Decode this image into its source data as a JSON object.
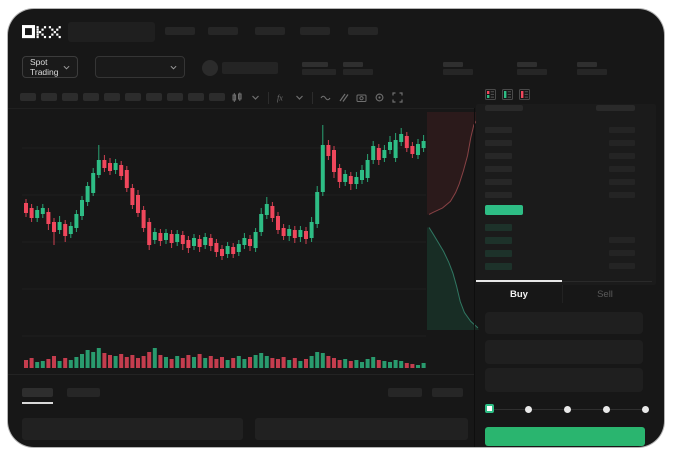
{
  "brand": {
    "name": "OKX"
  },
  "colors": {
    "green": "#2ebd85",
    "red": "#f0475c",
    "buy_button_green": "#2ab56f",
    "frame_bg": "#171717",
    "panel_bg": "#1b1b1b",
    "placeholder": "#262626",
    "active_underline": "#e8e8e8"
  },
  "header": {
    "nav_placeholder_count": 5
  },
  "subheader": {
    "market_selector_label": "Spot Trading",
    "stat_groups": 5
  },
  "toolbar": {
    "timeframe_button_count": 10,
    "icons": [
      "candle-style-icon",
      "chevron-down-icon",
      "fx-indicator-icon",
      "chevron-down-icon",
      "line-style-icon",
      "compare-icon",
      "camera-icon",
      "settings-icon",
      "fullscreen-icon"
    ]
  },
  "chart_data": {
    "type": "candlestick",
    "title": "",
    "xlabel": "",
    "ylabel": "",
    "note": "No axis labels visible; values are relative price units read from pixel positions. Candle format [open, close, high, low].",
    "ylim": [
      70,
      215
    ],
    "up_color": "#2ebd85",
    "down_color": "#f0475c",
    "grid": true,
    "candles": [
      [
        133,
        123,
        137,
        119
      ],
      [
        128,
        118,
        132,
        114
      ],
      [
        118,
        126,
        130,
        114
      ],
      [
        122,
        128,
        132,
        118
      ],
      [
        124,
        112,
        128,
        106
      ],
      [
        114,
        104,
        118,
        91
      ],
      [
        106,
        114,
        120,
        102
      ],
      [
        112,
        100,
        116,
        94
      ],
      [
        102,
        110,
        114,
        98
      ],
      [
        108,
        122,
        126,
        104
      ],
      [
        120,
        136,
        140,
        116
      ],
      [
        134,
        150,
        154,
        130
      ],
      [
        143,
        163,
        168,
        140
      ],
      [
        161,
        176,
        191,
        158
      ],
      [
        176,
        168,
        181,
        164
      ],
      [
        173,
        165,
        178,
        161
      ],
      [
        166,
        173,
        177,
        162
      ],
      [
        171,
        160,
        175,
        156
      ],
      [
        166,
        148,
        170,
        144
      ],
      [
        148,
        131,
        152,
        127
      ],
      [
        141,
        123,
        146,
        119
      ],
      [
        126,
        108,
        130,
        104
      ],
      [
        114,
        91,
        118,
        86
      ],
      [
        96,
        104,
        108,
        92
      ],
      [
        103,
        95,
        107,
        90
      ],
      [
        96,
        103,
        107,
        92
      ],
      [
        102,
        93,
        106,
        88
      ],
      [
        94,
        102,
        106,
        90
      ],
      [
        101,
        92,
        105,
        86
      ],
      [
        96,
        88,
        100,
        83
      ],
      [
        90,
        98,
        102,
        86
      ],
      [
        97,
        89,
        101,
        84
      ],
      [
        91,
        99,
        103,
        87
      ],
      [
        98,
        90,
        102,
        85
      ],
      [
        93,
        84,
        97,
        79
      ],
      [
        87,
        80,
        91,
        76
      ],
      [
        82,
        90,
        94,
        78
      ],
      [
        89,
        82,
        93,
        78
      ],
      [
        84,
        92,
        96,
        80
      ],
      [
        91,
        98,
        103,
        87
      ],
      [
        97,
        90,
        101,
        85
      ],
      [
        88,
        104,
        108,
        84
      ],
      [
        104,
        122,
        128,
        100
      ],
      [
        121,
        132,
        139,
        117
      ],
      [
        130,
        118,
        134,
        114
      ],
      [
        120,
        106,
        124,
        102
      ],
      [
        108,
        100,
        112,
        96
      ],
      [
        100,
        107,
        111,
        95
      ],
      [
        106,
        98,
        110,
        93
      ],
      [
        99,
        106,
        110,
        94
      ],
      [
        105,
        97,
        109,
        92
      ],
      [
        98,
        114,
        119,
        94
      ],
      [
        112,
        144,
        150,
        108
      ],
      [
        144,
        191,
        211,
        140
      ],
      [
        191,
        180,
        196,
        176
      ],
      [
        186,
        164,
        190,
        158
      ],
      [
        168,
        154,
        172,
        148
      ],
      [
        154,
        162,
        166,
        150
      ],
      [
        160,
        152,
        164,
        146
      ],
      [
        152,
        159,
        164,
        147
      ],
      [
        156,
        166,
        171,
        152
      ],
      [
        158,
        176,
        182,
        154
      ],
      [
        176,
        190,
        195,
        172
      ],
      [
        188,
        176,
        192,
        171
      ],
      [
        178,
        186,
        191,
        174
      ],
      [
        186,
        194,
        200,
        182
      ],
      [
        178,
        196,
        203,
        174
      ],
      [
        194,
        202,
        208,
        190
      ],
      [
        200,
        188,
        204,
        184
      ],
      [
        190,
        182,
        194,
        178
      ],
      [
        181,
        192,
        197,
        177
      ],
      [
        188,
        195,
        201,
        184
      ]
    ],
    "volume": [
      8,
      10,
      6,
      7,
      9,
      12,
      7,
      10,
      8,
      11,
      14,
      18,
      16,
      20,
      15,
      13,
      12,
      14,
      11,
      13,
      10,
      12,
      16,
      20,
      13,
      11,
      9,
      12,
      10,
      13,
      11,
      14,
      10,
      12,
      9,
      11,
      8,
      10,
      12,
      9,
      11,
      13,
      15,
      12,
      10,
      9,
      11,
      8,
      10,
      7,
      9,
      12,
      16,
      15,
      12,
      10,
      8,
      9,
      7,
      8,
      6,
      9,
      11,
      8,
      7,
      6,
      8,
      7,
      5,
      4,
      3,
      5
    ]
  },
  "depth_chart": {
    "type": "area",
    "orientation": "vertical",
    "asks_line": [
      [
        100,
        2
      ],
      [
        90,
        6
      ],
      [
        84,
        12
      ],
      [
        78,
        20
      ],
      [
        70,
        27
      ],
      [
        62,
        33
      ],
      [
        55,
        37
      ],
      [
        45,
        41
      ],
      [
        30,
        44
      ],
      [
        12,
        46
      ],
      [
        4,
        47
      ]
    ],
    "bids_line": [
      [
        4,
        53
      ],
      [
        12,
        56
      ],
      [
        22,
        60
      ],
      [
        32,
        64
      ],
      [
        42,
        69
      ],
      [
        50,
        74
      ],
      [
        57,
        80
      ],
      [
        64,
        87
      ],
      [
        72,
        92
      ],
      [
        84,
        96
      ],
      [
        98,
        99
      ]
    ],
    "ask_fill": "rgba(120,40,46,0.22)",
    "bid_fill": "rgba(28,104,76,0.28)",
    "ask_line_color": "rgba(220,100,105,0.55)",
    "bid_line_color": "rgba(70,190,155,0.55)"
  },
  "order_book": {
    "view_icons": [
      "book-both-icon",
      "book-bids-icon",
      "book-asks-icon"
    ],
    "ask_row_count": 6,
    "bid_row_count": 4,
    "bid_amount_row_indexes": [
      1,
      2,
      3
    ],
    "last_price_highlight_color": "#2ebd85"
  },
  "trade_panel": {
    "buy_tab_label": "Buy",
    "sell_tab_label": "Sell",
    "active_tab": "Buy",
    "input_count": 3,
    "slider_stop_count": 5,
    "slider_selected_index": 0
  },
  "bottom_panel": {
    "left_tab_count": 2,
    "active_tab_index": 0,
    "right_block_count": 2,
    "footer_block_count": 2
  }
}
